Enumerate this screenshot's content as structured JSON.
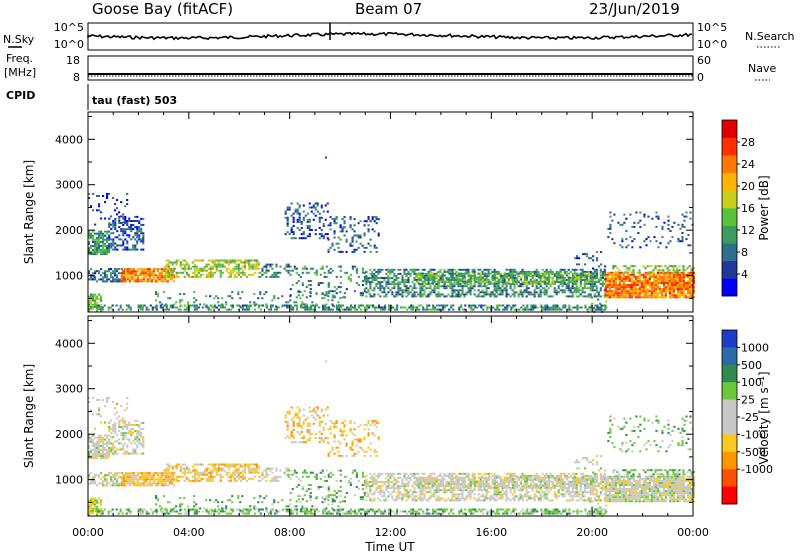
{
  "header": {
    "station": "Goose Bay (fitACF)",
    "beam": "Beam 07",
    "date": "23/Jun/2019"
  },
  "top_panels": {
    "nsky_label": "N.Sky",
    "nsky_ticks": [
      "10^5",
      "10^0"
    ],
    "nsearch_label": "N.Search",
    "nsearch_ticks": [
      "10^5",
      "10^0"
    ],
    "freq_label": "Freq.",
    "freq_unit": "[MHz]",
    "freq_ticks": [
      "18",
      "8"
    ],
    "nave_label": "Nave",
    "nave_ticks": [
      "60",
      "0"
    ],
    "cpid_label": "CPID",
    "cpid_value": "tau (fast) 503"
  },
  "chart_data": [
    {
      "type": "heatmap",
      "name": "power",
      "ylabel": "Slant Range [km]",
      "yticks": [
        "1000",
        "2000",
        "3000",
        "4000"
      ],
      "ylim": [
        200,
        4600
      ],
      "xlim": [
        0,
        24
      ],
      "xticks": [
        0,
        4,
        8,
        12,
        16,
        20,
        24
      ],
      "colorbar": {
        "label": "Power [dB]",
        "ticks": [
          "4",
          "8",
          "12",
          "16",
          "20",
          "24",
          "28"
        ],
        "range": [
          0,
          32
        ],
        "colors": [
          "#0000ff",
          "#1f3a96",
          "#2e6e8e",
          "#3c9c5c",
          "#59c23c",
          "#c8d01c",
          "#ffb400",
          "#ff7800",
          "#ff3000",
          "#e00000"
        ]
      }
    },
    {
      "type": "heatmap",
      "name": "velocity",
      "ylabel": "Slant Range [km]",
      "yticks": [
        "1000",
        "2000",
        "3000",
        "4000"
      ],
      "ylim": [
        200,
        4600
      ],
      "xlim": [
        0,
        24
      ],
      "xlabel": "Time UT",
      "xtick_labels": [
        "00:00",
        "04:00",
        "08:00",
        "12:00",
        "16:00",
        "20:00",
        "00:00"
      ],
      "colorbar": {
        "label": "Velocity [m s⁻¹]",
        "ticks": [
          "1000",
          "500",
          "100",
          "25",
          "-25",
          "-100",
          "-500",
          "-1000"
        ],
        "colors": [
          "#1e3cc8",
          "#2c6aa8",
          "#2e8a50",
          "#6cc83c",
          "#c8c8c8",
          "#c8c8c8",
          "#ffc81e",
          "#ff9600",
          "#ff5000",
          "#ff0000"
        ]
      }
    }
  ]
}
